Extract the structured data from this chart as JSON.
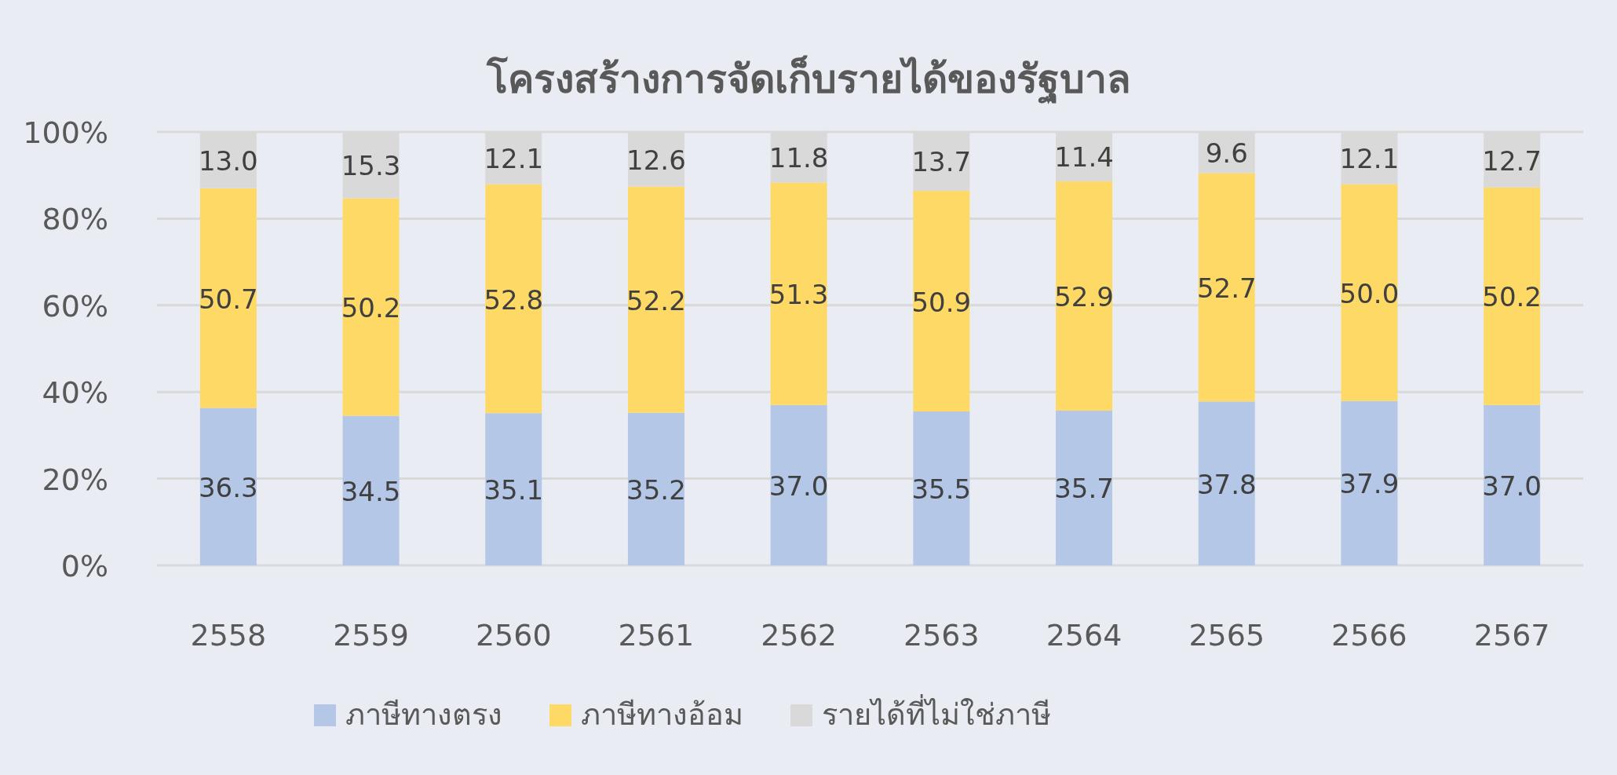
{
  "chart_data": {
    "type": "bar",
    "stacked": true,
    "title": "โครงสร้างการจัดเก็บรายได้ของรัฐบาล",
    "categories": [
      "2558",
      "2559",
      "2560",
      "2561",
      "2562",
      "2563",
      "2564",
      "2565",
      "2566",
      "2567"
    ],
    "series": [
      {
        "name": "ภาษีทางตรง",
        "color": "#b4c7e7",
        "values": [
          36.3,
          34.5,
          35.1,
          35.2,
          37.0,
          35.5,
          35.7,
          37.8,
          37.9,
          37.0
        ],
        "value_labels": [
          "36.3",
          "34.5",
          "35.1",
          "35.2",
          "37.0",
          "35.5",
          "35.7",
          "37.8",
          "37.9",
          "37.0"
        ]
      },
      {
        "name": "ภาษีทางอ้อม",
        "color": "#ffd966",
        "values": [
          50.7,
          50.2,
          52.8,
          52.2,
          51.3,
          50.9,
          52.9,
          52.7,
          50.0,
          50.2
        ],
        "value_labels": [
          "50.7",
          "50.2",
          "52.8",
          "52.2",
          "51.3",
          "50.9",
          "52.9",
          "52.7",
          "50.0",
          "50.2"
        ]
      },
      {
        "name": "รายได้ที่ไม่ใช่ภาษี",
        "color": "#d9d9d9",
        "values": [
          13.0,
          15.3,
          12.1,
          12.6,
          11.8,
          13.7,
          11.4,
          9.6,
          12.1,
          12.7
        ],
        "value_labels": [
          "13.0",
          "15.3",
          "12.1",
          "12.6",
          "11.8",
          "13.7",
          "11.4",
          "9.6",
          "12.1",
          "12.7"
        ]
      }
    ],
    "ylim": [
      0,
      100
    ],
    "yticks": [
      {
        "value": 0,
        "label": "0%"
      },
      {
        "value": 20,
        "label": "20%"
      },
      {
        "value": 40,
        "label": "40%"
      },
      {
        "value": 60,
        "label": "60%"
      },
      {
        "value": 80,
        "label": "80%"
      },
      {
        "value": 100,
        "label": "100%"
      }
    ],
    "grid": "y",
    "legend": "bottom"
  }
}
